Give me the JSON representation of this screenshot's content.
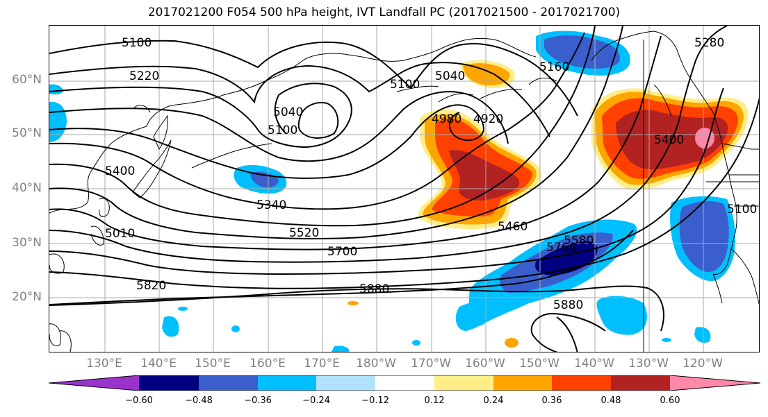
{
  "title": "2017021200 F054 500 hPa height, IVT Landfall PC (2017021500 - 2017021700)",
  "lat_labels": [
    "60°N",
    "50°N",
    "40°N",
    "30°N",
    "20°N"
  ],
  "lon_labels": [
    "130°E",
    "140°E",
    "150°E",
    "160°E",
    "170°E",
    "180°W",
    "170°W",
    "160°W",
    "150°W",
    "140°W",
    "130°W",
    "120°W"
  ],
  "contour_labels": [
    "5100",
    "5220",
    "5040",
    "5100",
    "5100",
    "5040",
    "4980",
    "4920",
    "5160",
    "5280",
    "5400",
    "5340",
    "5460",
    "5520",
    "5700",
    "5580",
    "5760",
    "5820",
    "5880",
    "5880",
    "5400",
    "5010",
    "5100"
  ],
  "colorbar": {
    "colors": [
      "#9933cc",
      "#000080",
      "#3a5fcd",
      "#00bfff",
      "#b0e2ff",
      "#ffffff",
      "#ffee88",
      "#ffa500",
      "#ff4000",
      "#b22222",
      "#ff88aa"
    ],
    "ticks": [
      "−0.60",
      "−0.48",
      "−0.36",
      "−0.24",
      "−0.12",
      "0.12",
      "0.24",
      "0.36",
      "0.48",
      "0.60"
    ]
  }
}
